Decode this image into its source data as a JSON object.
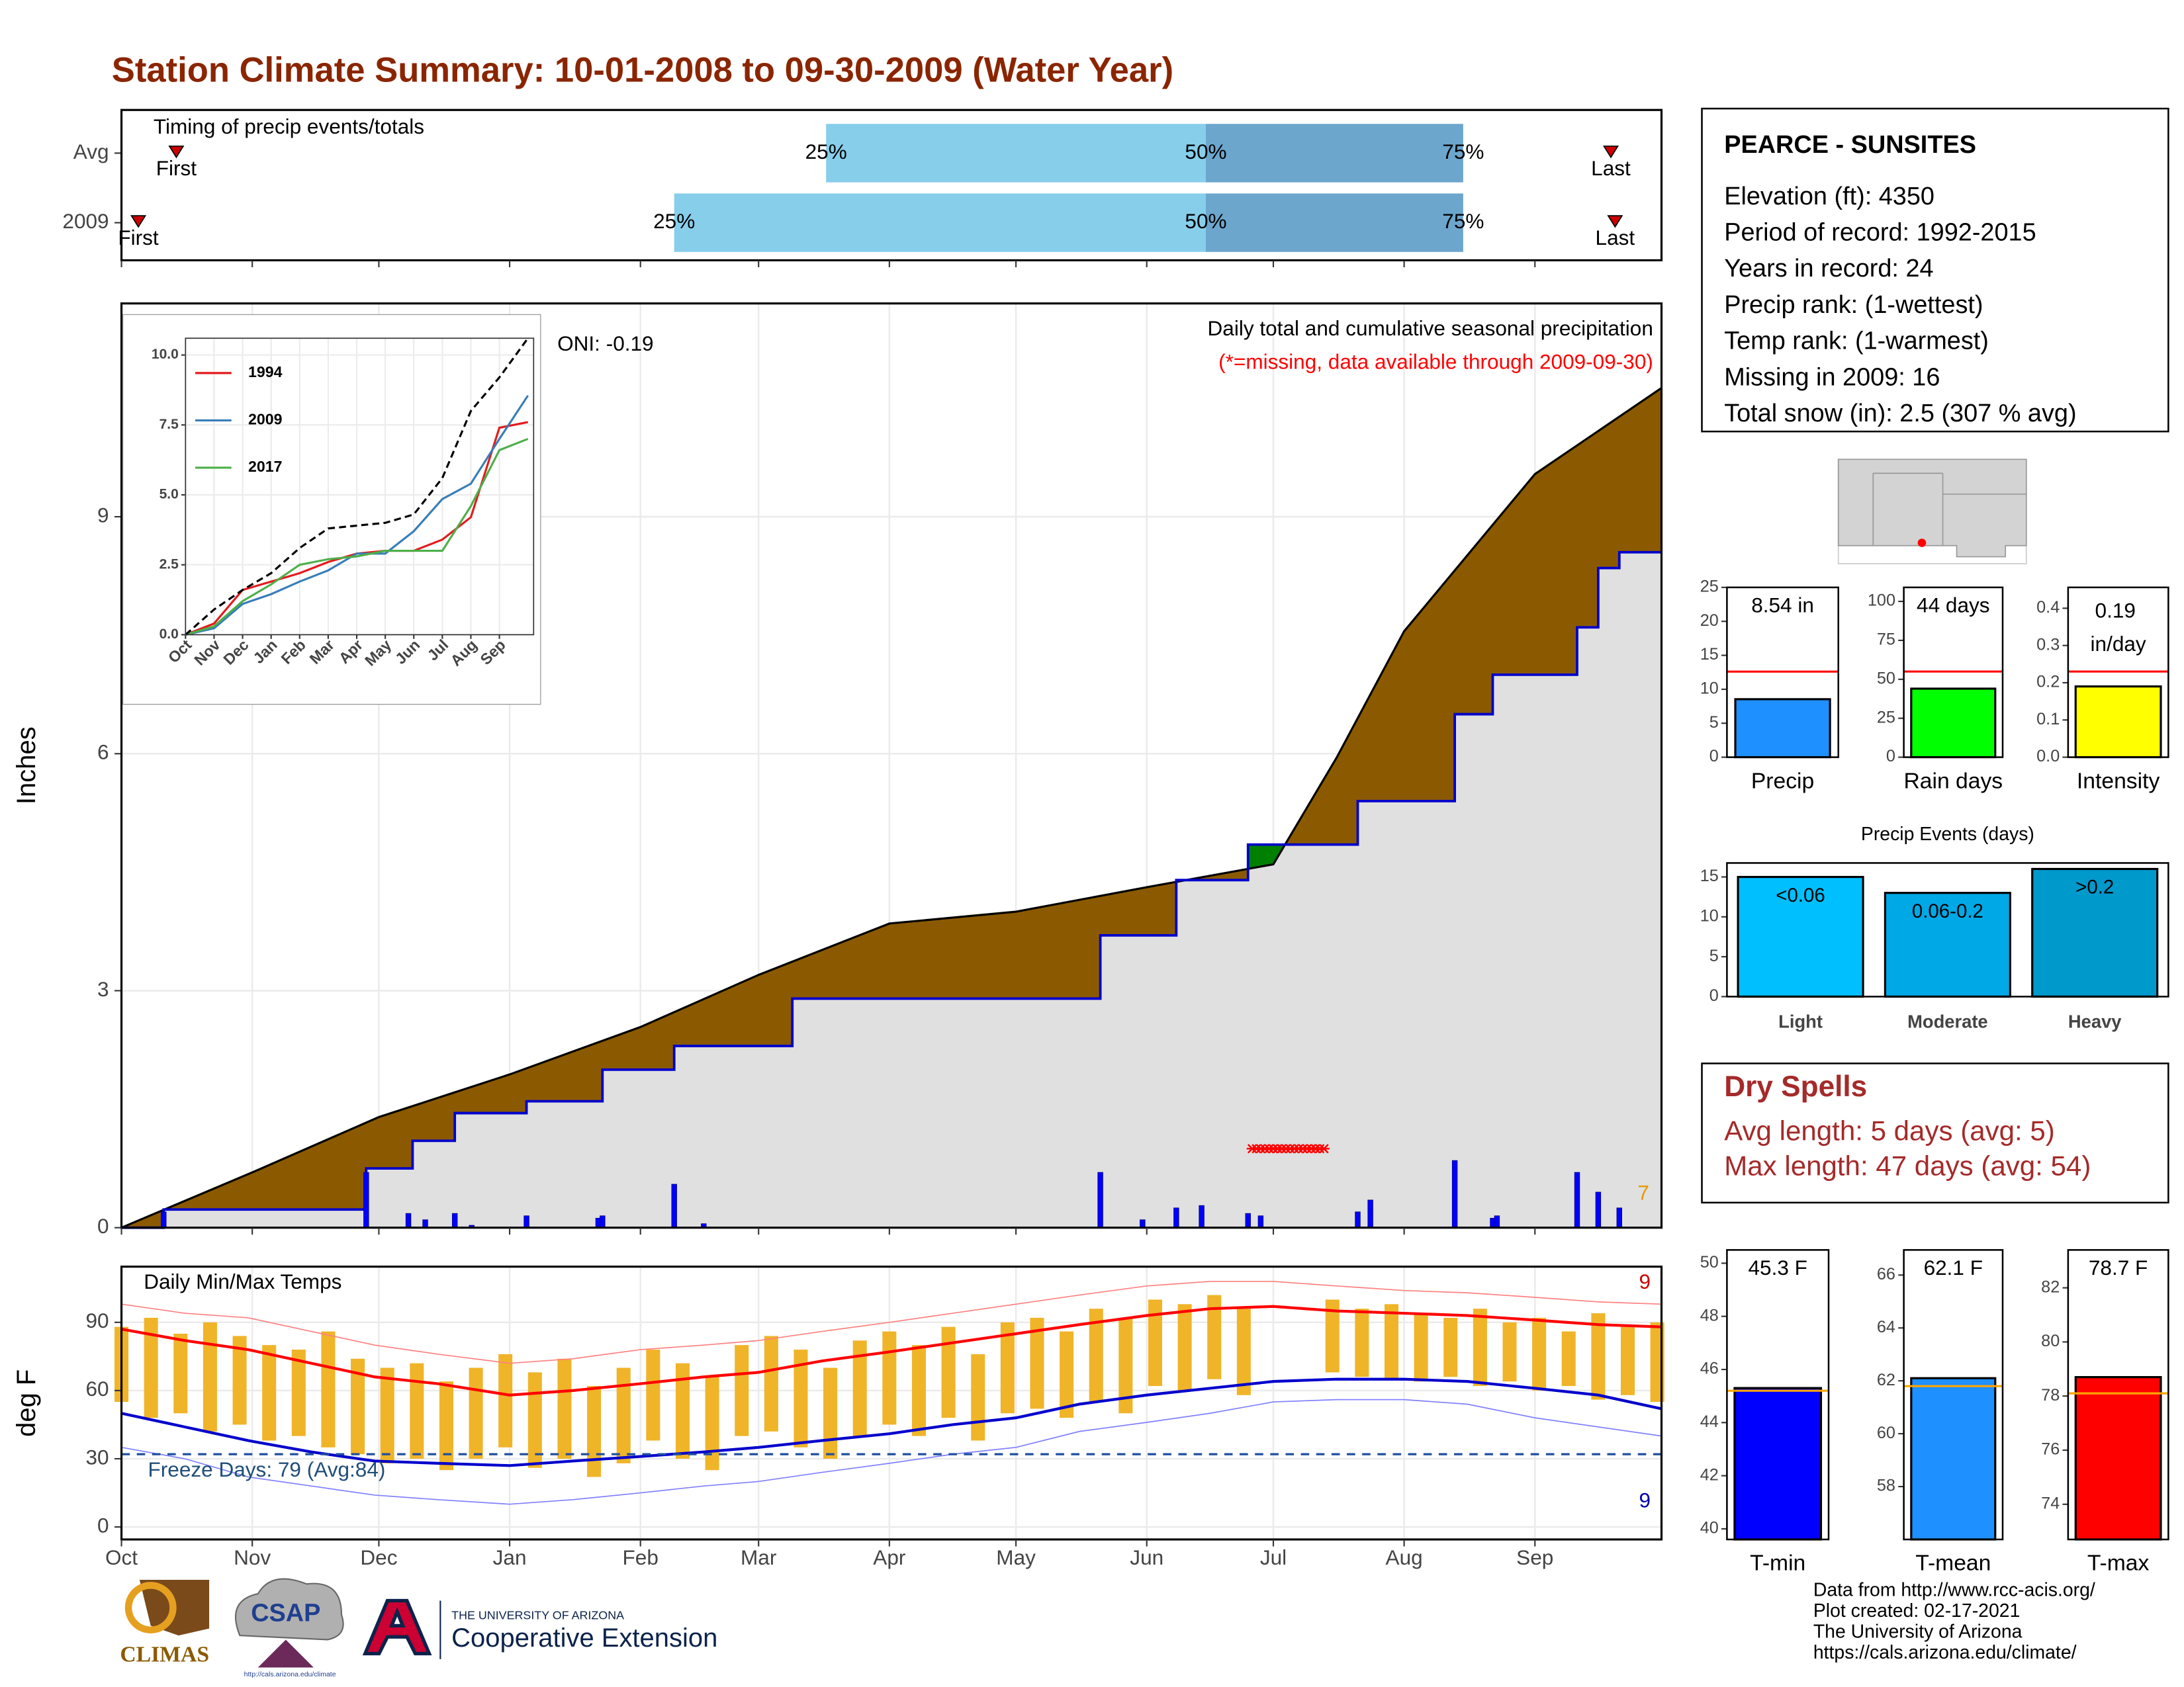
{
  "title": "Station Climate Summary: 10-01-2008 to 09-30-2009 (Water Year)",
  "station": {
    "name": "PEARCE - SUNSITES",
    "lines": [
      "Elevation (ft): 4350",
      "Period of record: 1992-2015",
      "Years in record: 24",
      "Precip rank:  (1-wettest)",
      "Temp rank:  (1-warmest)",
      "Missing in 2009: 16",
      "Total snow (in): 2.5 (307 % avg)"
    ]
  },
  "dry_spells": {
    "title": "Dry Spells",
    "lines": [
      "Avg length: 5 days (avg: 5)",
      "Max length: 47 days (avg: 54)"
    ]
  },
  "footer": [
    "Data from http://www.rcc-acis.org/",
    "Plot created: 02-17-2021",
    "The University of Arizona",
    "https://cals.arizona.edu/climate/"
  ],
  "logos": {
    "climas": "CLIMAS",
    "csap": "CSAP",
    "csap_url": "http://cals.arizona.edu/climate",
    "ua": "THE UNIVERSITY OF ARIZONA",
    "coop": "Cooperative Extension"
  },
  "chart_data": [
    {
      "type": "timeline",
      "title": "Timing of precip events/totals",
      "categories": [
        "Avg",
        "2009"
      ],
      "quantile_labels": [
        "25%",
        "50%",
        "75%"
      ],
      "marker_labels": [
        "First",
        "Last"
      ],
      "first": [
        13,
        4
      ],
      "q25": [
        167,
        131
      ],
      "q50": [
        257,
        257
      ],
      "q75": [
        318,
        318
      ],
      "last": [
        353,
        354
      ],
      "colors": [
        "#87ceeb",
        "#6ca6cd"
      ],
      "marker_color": "#cc0000",
      "xlim": [
        0,
        365
      ]
    },
    {
      "type": "area",
      "ylabel": "Inches",
      "subtitle": "Daily total and cumulative seasonal precipitation",
      "note": "(*=missing, data available through 2009-09-30)",
      "oni": "ONI: -0.19",
      "count_label": "7",
      "xlim": [
        0,
        365
      ],
      "ylim": [
        0,
        11.7
      ],
      "yticks": [
        0,
        3,
        6,
        9
      ],
      "grid": true,
      "series": [
        {
          "x": [
            0,
            31,
            61,
            92,
            123,
            151,
            182,
            212,
            243,
            273,
            288,
            304,
            335,
            365
          ],
          "values": [
            0,
            0.7,
            1.4,
            1.94,
            2.54,
            3.2,
            3.85,
            4.0,
            4.31,
            4.6,
            5.95,
            7.55,
            9.54,
            10.63
          ],
          "color": "#8b5a00"
        },
        {
          "x": [
            0,
            10,
            10,
            58,
            58,
            69,
            69,
            79,
            79,
            96,
            96,
            114,
            114,
            131,
            131,
            159,
            159,
            232,
            232,
            250,
            250,
            267,
            267,
            293,
            293,
            316,
            316,
            325,
            325,
            345,
            345,
            350,
            350,
            355,
            355,
            365
          ],
          "values": [
            0,
            0,
            0.23,
            0.23,
            0.75,
            0.75,
            1.1,
            1.1,
            1.45,
            1.45,
            1.6,
            1.6,
            2.0,
            2.0,
            2.3,
            2.3,
            2.9,
            2.9,
            3.7,
            3.7,
            4.4,
            4.4,
            4.85,
            4.85,
            5.4,
            5.4,
            6.5,
            6.5,
            7.0,
            7.0,
            7.6,
            7.6,
            8.35,
            8.35,
            8.55,
            8.55
          ],
          "color": "#0000cc",
          "fill": "#e0e0e0",
          "above_color": "#008000"
        }
      ],
      "daily": {
        "x": [
          10,
          58,
          68,
          72,
          79,
          83,
          96,
          113,
          114,
          131,
          138,
          232,
          242,
          250,
          256,
          267,
          270,
          293,
          296,
          316,
          325,
          326,
          345,
          350,
          355
        ],
        "values": [
          0.2,
          0.7,
          0.18,
          0.1,
          0.18,
          0.03,
          0.15,
          0.12,
          0.15,
          0.55,
          0.05,
          0.7,
          0.1,
          0.25,
          0.28,
          0.18,
          0.15,
          0.2,
          0.35,
          0.85,
          0.12,
          0.15,
          0.7,
          0.45,
          0.25
        ],
        "color": "#0000ff"
      },
      "missing": {
        "range": [
          268,
          285
        ],
        "value": 1.0,
        "color": "#ff0000"
      }
    },
    {
      "type": "line",
      "x": [
        0,
        1,
        2,
        3,
        4,
        5,
        6,
        7,
        8,
        9,
        10,
        11,
        12
      ],
      "xlim": [
        0,
        12.2
      ],
      "ylim": [
        0,
        10.6
      ],
      "xticks": [
        {
          "value": 0,
          "label": "Oct"
        },
        {
          "value": 1,
          "label": "Nov"
        },
        {
          "value": 2,
          "label": "Dec"
        },
        {
          "value": 3,
          "label": "Jan"
        },
        {
          "value": 4,
          "label": "Feb"
        },
        {
          "value": 5,
          "label": "Mar"
        },
        {
          "value": 6,
          "label": "Apr"
        },
        {
          "value": 7,
          "label": "May"
        },
        {
          "value": 8,
          "label": "Jun"
        },
        {
          "value": 9,
          "label": "Jul"
        },
        {
          "value": 10,
          "label": "Aug"
        },
        {
          "value": 11,
          "label": "Sep"
        }
      ],
      "yticks": [
        {
          "value": 0,
          "label": "0.0"
        },
        {
          "value": 2.5,
          "label": "2.5"
        },
        {
          "value": 5,
          "label": "5.0"
        },
        {
          "value": 7.5,
          "label": "7.5"
        },
        {
          "value": 10,
          "label": "10.0"
        }
      ],
      "series": [
        {
          "name": "1994",
          "color": "#e41a1c",
          "values": [
            0,
            0.4,
            1.6,
            1.9,
            2.2,
            2.6,
            2.9,
            3.0,
            3.0,
            3.4,
            4.2,
            7.4,
            7.6
          ]
        },
        {
          "name": "2009",
          "color": "#377eb8",
          "values": [
            0,
            0.23,
            1.1,
            1.45,
            1.9,
            2.3,
            2.9,
            2.9,
            3.7,
            4.85,
            5.4,
            7.0,
            8.55
          ]
        },
        {
          "name": "2017",
          "color": "#4daf4a",
          "values": [
            0,
            0.3,
            1.2,
            1.8,
            2.5,
            2.7,
            2.8,
            3.0,
            3.0,
            3.0,
            4.6,
            6.6,
            7.0
          ]
        },
        {
          "color": "#000000",
          "dashed": true,
          "values": [
            0,
            0.9,
            1.6,
            2.2,
            3.1,
            3.8,
            3.9,
            4.0,
            4.3,
            5.6,
            8.0,
            9.2,
            10.6
          ]
        }
      ]
    },
    {
      "type": "temperature",
      "title": "Daily Min/Max Temps",
      "ylabel": "deg F",
      "freeze_label": "Freeze Days: 79 (Avg:84)",
      "freeze": 32,
      "high_count": "9",
      "low_count": "9",
      "xlim": [
        0,
        365
      ],
      "ylim": [
        -5.5,
        114.5
      ],
      "yticks": [
        0,
        30,
        60,
        90
      ],
      "grid": true,
      "xticks": [
        {
          "value": 0,
          "label": "Oct"
        },
        {
          "value": 31,
          "label": "Nov"
        },
        {
          "value": 61,
          "label": "Dec"
        },
        {
          "value": 92,
          "label": "Jan"
        },
        {
          "value": 123,
          "label": "Feb"
        },
        {
          "value": 151,
          "label": "Mar"
        },
        {
          "value": 182,
          "label": "Apr"
        },
        {
          "value": 212,
          "label": "May"
        },
        {
          "value": 243,
          "label": "Jun"
        },
        {
          "value": 273,
          "label": "Jul"
        },
        {
          "value": 304,
          "label": "Aug"
        },
        {
          "value": 335,
          "label": "Sep"
        }
      ],
      "daily": {
        "x": [
          0,
          7,
          14,
          21,
          28,
          35,
          42,
          49,
          56,
          63,
          70,
          77,
          84,
          91,
          98,
          105,
          112,
          119,
          126,
          133,
          140,
          147,
          154,
          161,
          168,
          175,
          182,
          189,
          196,
          203,
          210,
          217,
          224,
          231,
          238,
          245,
          252,
          259,
          266,
          273,
          280,
          287,
          294,
          301,
          308,
          315,
          322,
          329,
          336,
          343,
          350,
          357,
          364
        ],
        "max": [
          88,
          92,
          85,
          90,
          84,
          80,
          78,
          86,
          74,
          70,
          72,
          64,
          70,
          76,
          68,
          74,
          62,
          70,
          78,
          72,
          66,
          80,
          84,
          78,
          70,
          82,
          86,
          80,
          88,
          76,
          90,
          92,
          86,
          96,
          92,
          100,
          98,
          102,
          96,
          null,
          null,
          100,
          96,
          98,
          94,
          92,
          96,
          90,
          92,
          86,
          94,
          88,
          90
        ],
        "min": [
          55,
          48,
          50,
          42,
          45,
          38,
          40,
          35,
          32,
          28,
          30,
          25,
          30,
          35,
          26,
          30,
          22,
          28,
          38,
          30,
          25,
          40,
          42,
          35,
          30,
          40,
          45,
          40,
          48,
          38,
          50,
          52,
          48,
          55,
          50,
          62,
          60,
          65,
          58,
          null,
          null,
          68,
          66,
          65,
          64,
          66,
          62,
          64,
          60,
          62,
          56,
          58,
          55
        ],
        "color": "#f0b429"
      },
      "x": [
        0,
        15,
        30,
        45,
        60,
        75,
        92,
        107,
        123,
        138,
        151,
        166,
        182,
        197,
        212,
        227,
        243,
        258,
        273,
        288,
        304,
        319,
        335,
        350,
        365
      ],
      "series": [
        {
          "color": "#ff0000",
          "width": 2,
          "values": [
            87,
            82,
            78,
            72,
            66,
            63,
            58,
            60,
            63,
            66,
            68,
            73,
            77,
            81,
            85,
            89,
            93,
            96,
            97,
            95,
            94,
            93,
            91,
            89,
            88
          ]
        },
        {
          "color": "#0000cc",
          "width": 2,
          "values": [
            50,
            44,
            38,
            33,
            29,
            28,
            27,
            29,
            31,
            33,
            35,
            38,
            41,
            45,
            48,
            54,
            58,
            61,
            64,
            65,
            65,
            64,
            61,
            58,
            52
          ]
        },
        {
          "color": "#ff8080",
          "width": 0.8,
          "values": [
            98,
            94,
            92,
            86,
            80,
            76,
            72,
            74,
            78,
            80,
            82,
            86,
            90,
            94,
            98,
            102,
            106,
            108,
            108,
            106,
            104,
            103,
            101,
            99,
            98
          ]
        },
        {
          "color": "#8080ff",
          "width": 0.8,
          "values": [
            35,
            30,
            22,
            18,
            14,
            12,
            10,
            12,
            15,
            18,
            20,
            24,
            28,
            32,
            35,
            42,
            46,
            50,
            55,
            56,
            56,
            54,
            48,
            44,
            40
          ]
        }
      ]
    },
    {
      "type": "bar",
      "categories": [
        "Precip"
      ],
      "values": [
        8.54
      ],
      "value_labels": [
        "8.54 in"
      ],
      "color": "#1e90ff",
      "reference": 12.6,
      "reference_color": "#ff0000",
      "ylim": [
        0,
        25
      ],
      "yticks": [
        0,
        5,
        10,
        15,
        20,
        25
      ]
    },
    {
      "type": "bar",
      "categories": [
        "Rain days"
      ],
      "values": [
        44
      ],
      "value_labels": [
        "44 days"
      ],
      "color": "#00ff00",
      "reference": 55,
      "reference_color": "#ff0000",
      "ylim": [
        0,
        109
      ],
      "yticks": [
        0,
        25,
        50,
        75,
        100
      ]
    },
    {
      "type": "bar",
      "categories": [
        "Intensity"
      ],
      "values": [
        0.19
      ],
      "value_labels": [
        "0.19 in/day"
      ],
      "color": "#ffff00",
      "reference": 0.23,
      "reference_color": "#ff0000",
      "ylim": [
        0,
        0.456
      ],
      "yticks": [
        {
          "value": 0,
          "label": "0.0"
        },
        {
          "value": 0.1,
          "label": "0.1"
        },
        {
          "value": 0.2,
          "label": "0.2"
        },
        {
          "value": 0.3,
          "label": "0.3"
        },
        {
          "value": 0.4,
          "label": "0.4"
        }
      ]
    },
    {
      "type": "bar",
      "title": "Precip Events (days)",
      "categories": [
        "Light",
        "Moderate",
        "Heavy"
      ],
      "bar_labels": [
        "<0.06",
        "0.06-0.2",
        ">0.2"
      ],
      "values": [
        15,
        13,
        16
      ],
      "colors": [
        "#00bfff",
        "#00a8e6",
        "#0099cc"
      ],
      "ylim": [
        0,
        16.75
      ],
      "yticks": [
        0,
        5,
        10,
        15
      ]
    },
    {
      "type": "bar",
      "categories": [
        "T-min"
      ],
      "values": [
        45.3
      ],
      "value_labels": [
        "45.3 F"
      ],
      "color": "#0000ff",
      "reference": 45.2,
      "reference_color": "#ffa500",
      "ylim": [
        39.6,
        50.5
      ],
      "yticks": [
        40,
        42,
        44,
        46,
        48,
        50
      ]
    },
    {
      "type": "bar",
      "categories": [
        "T-mean"
      ],
      "values": [
        62.1
      ],
      "value_labels": [
        "62.1 F"
      ],
      "color": "#1e90ff",
      "reference": 61.8,
      "reference_color": "#ffa500",
      "ylim": [
        56,
        66.95
      ],
      "yticks": [
        58,
        60,
        62,
        64,
        66
      ]
    },
    {
      "type": "bar",
      "categories": [
        "T-max"
      ],
      "values": [
        78.7
      ],
      "value_labels": [
        "78.7 F"
      ],
      "color": "#ff0000",
      "reference": 78.1,
      "reference_color": "#ffa500",
      "ylim": [
        72.7,
        83.4
      ],
      "yticks": [
        74,
        76,
        78,
        80,
        82
      ]
    }
  ]
}
